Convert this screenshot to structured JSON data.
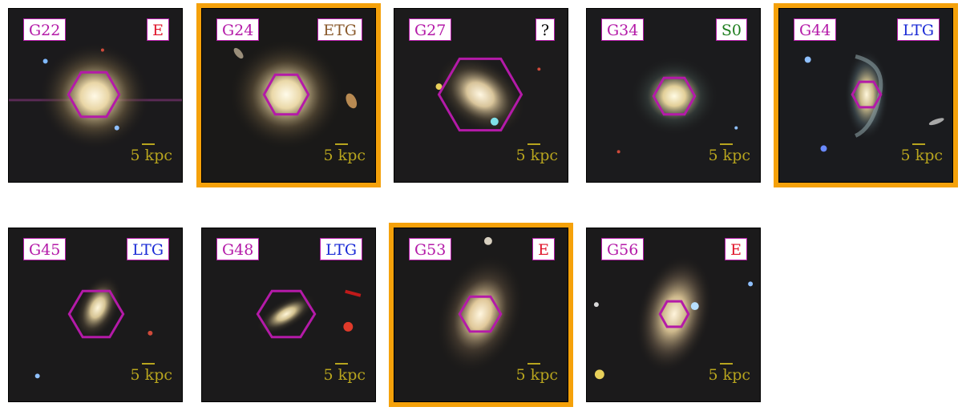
{
  "colors": {
    "highlight": "#f5a10a",
    "hex_marker": "#b41aa8",
    "id_text": "#b41aa8",
    "scale_text": "#b8a51e",
    "class_E": "#e0142a",
    "class_ETG": "#8a5a2c",
    "class_LTG": "#1a2ad6",
    "class_S0": "#1d7d1d",
    "class_unknown": "#000000"
  },
  "panels": [
    {
      "id": "G22",
      "cls": "E",
      "scale": "5 kpc",
      "highlight": false
    },
    {
      "id": "G24",
      "cls": "ETG",
      "scale": "5 kpc",
      "highlight": true
    },
    {
      "id": "G27",
      "cls": "?",
      "scale": "5 kpc",
      "highlight": false
    },
    {
      "id": "G34",
      "cls": "S0",
      "scale": "5 kpc",
      "highlight": false
    },
    {
      "id": "G44",
      "cls": "LTG",
      "scale": "5 kpc",
      "highlight": true
    },
    {
      "id": "G45",
      "cls": "LTG",
      "scale": "5 kpc",
      "highlight": false
    },
    {
      "id": "G48",
      "cls": "LTG",
      "scale": "5 kpc",
      "highlight": false
    },
    {
      "id": "G53",
      "cls": "E",
      "scale": "5 kpc",
      "highlight": true
    },
    {
      "id": "G56",
      "cls": "E",
      "scale": "5 kpc",
      "highlight": false
    }
  ]
}
